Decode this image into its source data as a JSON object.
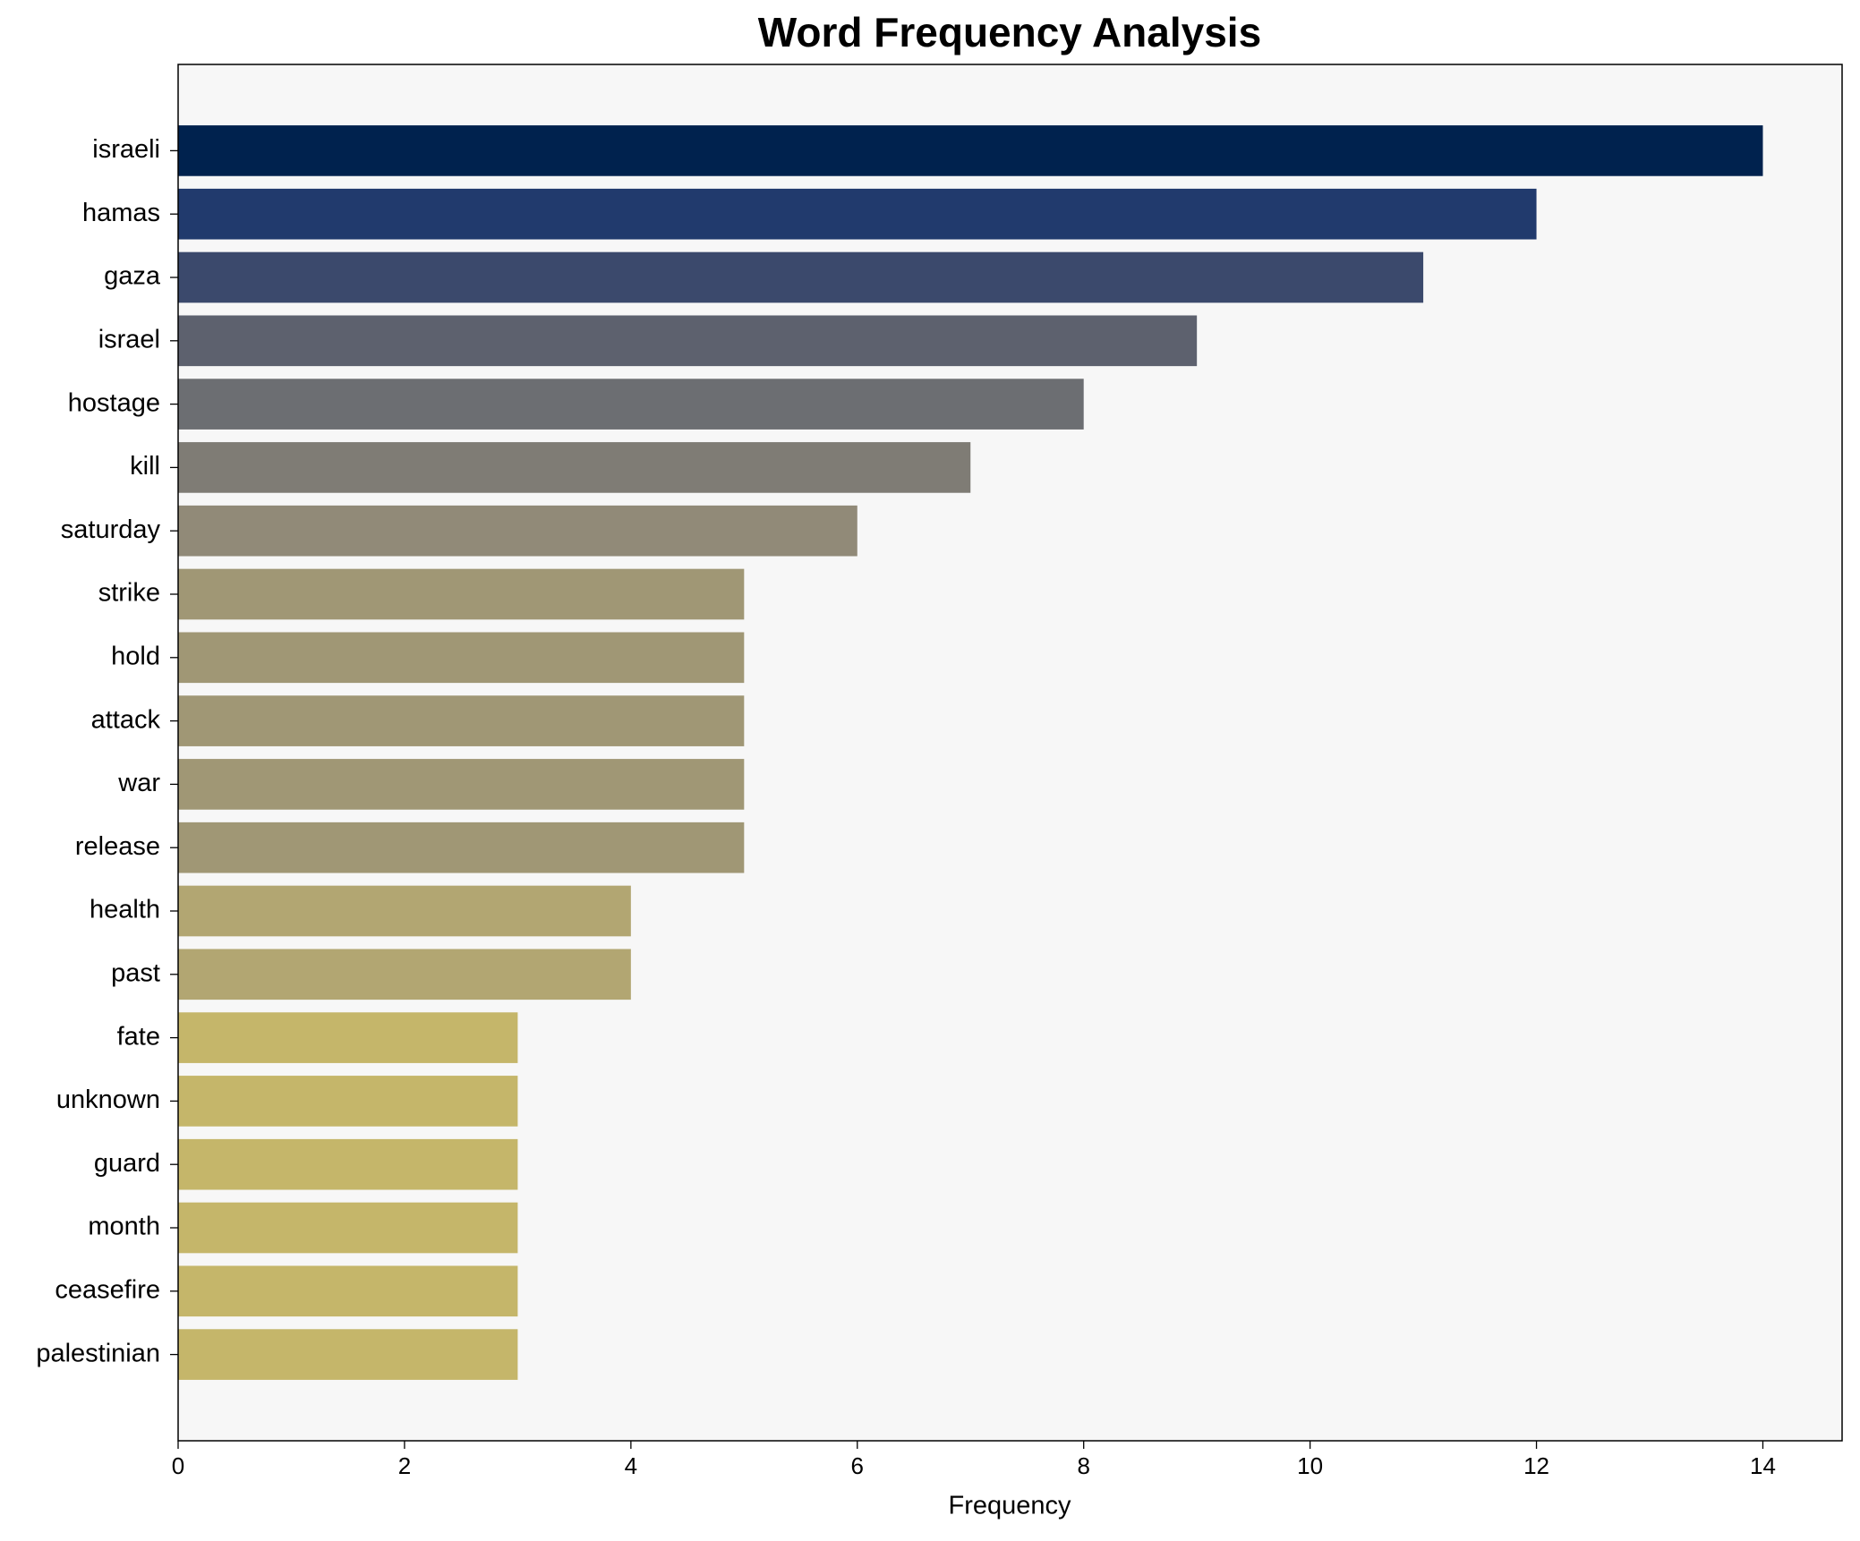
{
  "chart_data": {
    "type": "barh",
    "title": "Word Frequency Analysis",
    "x_label": "Frequency",
    "categories": [
      "israeli",
      "hamas",
      "gaza",
      "israel",
      "hostage",
      "kill",
      "saturday",
      "strike",
      "hold",
      "attack",
      "war",
      "release",
      "health",
      "past",
      "fate",
      "unknown",
      "guard",
      "month",
      "ceasefire",
      "palestinian"
    ],
    "values": [
      14,
      12,
      11,
      9,
      8,
      7,
      6,
      5,
      5,
      5,
      5,
      5,
      4,
      4,
      3,
      3,
      3,
      3,
      3,
      3
    ],
    "colors": [
      "#00224e",
      "#213a6d",
      "#3b496c",
      "#5d616e",
      "#6c6e72",
      "#7f7c75",
      "#918a78",
      "#a09775",
      "#a09775",
      "#a09775",
      "#a09775",
      "#a09775",
      "#b2a672",
      "#b2a672",
      "#c5b66a",
      "#c5b66a",
      "#c5b66a",
      "#c5b66a",
      "#c5b66a",
      "#c5b66a"
    ],
    "xlim": [
      0,
      14.7
    ],
    "xticks": [
      0,
      2,
      4,
      6,
      8,
      10,
      12,
      14
    ],
    "grid": false
  }
}
